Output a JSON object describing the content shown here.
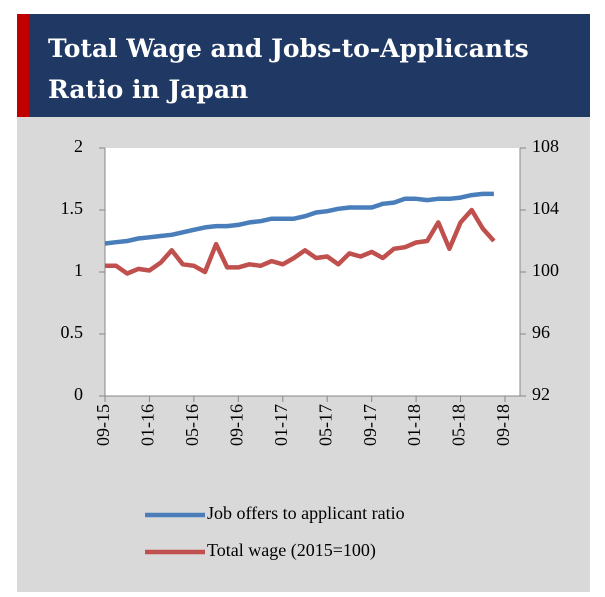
{
  "chart_data": {
    "type": "line",
    "title_lines": [
      "Total Wage and Jobs-to-Applicants",
      "Ratio in Japan"
    ],
    "categories": [
      "09-15",
      null,
      null,
      null,
      "01-16",
      null,
      null,
      null,
      "05-16",
      null,
      null,
      null,
      "09-16",
      null,
      null,
      null,
      "01-17",
      null,
      null,
      null,
      "05-17",
      null,
      null,
      null,
      "09-17",
      null,
      null,
      null,
      "01-18",
      null,
      null,
      null,
      "05-18",
      null,
      null,
      null,
      "09-18"
    ],
    "series": [
      {
        "name": "Job offers to applicant ratio",
        "color": "#4a7ebb",
        "axis": "y",
        "values": [
          1.23,
          1.24,
          1.25,
          1.27,
          1.28,
          1.29,
          1.3,
          1.32,
          1.34,
          1.36,
          1.37,
          1.37,
          1.38,
          1.4,
          1.41,
          1.43,
          1.43,
          1.43,
          1.45,
          1.48,
          1.49,
          1.51,
          1.52,
          1.52,
          1.52,
          1.55,
          1.56,
          1.59,
          1.59,
          1.58,
          1.59,
          1.59,
          1.6,
          1.62,
          1.63,
          1.63,
          null
        ]
      },
      {
        "name": "Total wage (2015=100)",
        "color": "#c0504d",
        "axis": "y2",
        "values": [
          100.4,
          100.4,
          99.9,
          100.2,
          100.1,
          100.6,
          101.4,
          100.5,
          100.4,
          100.0,
          101.8,
          100.3,
          100.3,
          100.5,
          100.4,
          100.7,
          100.5,
          100.9,
          101.4,
          100.9,
          101.0,
          100.5,
          101.2,
          101.0,
          101.3,
          100.9,
          101.5,
          101.6,
          101.9,
          102.0,
          103.2,
          101.5,
          103.2,
          104.0,
          102.8,
          102.0,
          null
        ]
      }
    ],
    "ylim": [
      0,
      2
    ],
    "yticks": [
      0,
      0.5,
      1,
      1.5,
      2
    ],
    "y2lim": [
      92,
      108
    ],
    "y2ticks": [
      92,
      96,
      100,
      104,
      108
    ]
  }
}
